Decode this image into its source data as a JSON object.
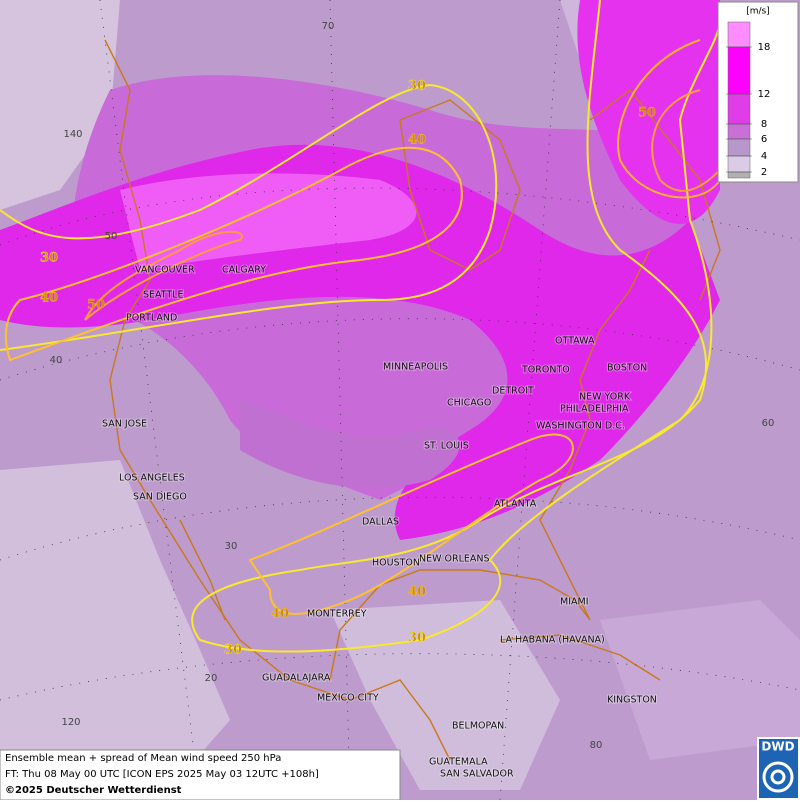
{
  "map": {
    "cities": [
      "VANCOUVER",
      "CALGARY",
      "SEATTLE",
      "PORTLAND",
      "MINNEAPOLIS",
      "OTTAWA",
      "TORONTO",
      "BOSTON",
      "DETROIT",
      "NEW YORK",
      "PHILADELPHIA",
      "CHICAGO",
      "WASHINGTON D.C.",
      "ST. LOUIS",
      "SAN JOSE",
      "LOS ANGELES",
      "SAN DIEGO",
      "ATLANTA",
      "DALLAS",
      "HOUSTON",
      "NEW ORLEANS",
      "MONTERREY",
      "MIAMI",
      "LA HABANA (HAVANA)",
      "GUADALAJARA",
      "MEXICO CITY",
      "KINGSTON",
      "BELMOPAN",
      "GUATEMALA",
      "SAN SALVADOR"
    ],
    "contour_labels": [
      30,
      40,
      30,
      40,
      50,
      50,
      40,
      30,
      40,
      30
    ],
    "graticule_labels": [
      70,
      140,
      50,
      40,
      30,
      20,
      120,
      60,
      80
    ],
    "legend": {
      "unit": "[m/s]",
      "ticks": [
        18,
        12,
        8,
        6,
        4,
        2
      ]
    },
    "footer": {
      "line1": "Ensemble mean + spread of Mean wind speed 250 hPa",
      "line2": "FT: Thu 08 May 00 UTC [ICON EPS 2025 May 03 12UTC +108h]",
      "line3": "©2025 Deutscher Wetterdienst"
    },
    "logo": "DWD"
  }
}
